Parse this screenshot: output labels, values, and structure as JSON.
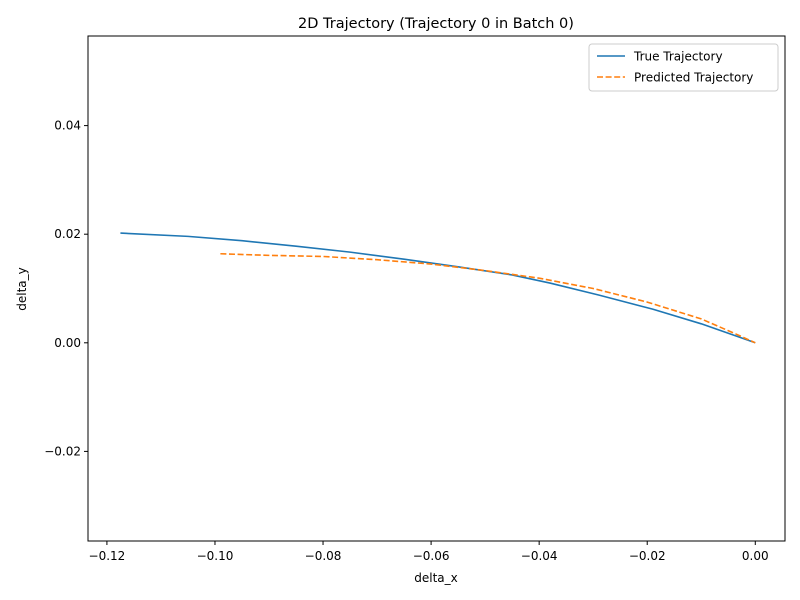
{
  "chart_data": {
    "type": "line",
    "title": "2D Trajectory (Trajectory 0 in Batch 0)",
    "xlabel": "delta_x",
    "ylabel": "delta_y",
    "xlim": [
      -0.1235,
      0.0055
    ],
    "ylim": [
      -0.0365,
      0.0565
    ],
    "xticks": [
      -0.12,
      -0.1,
      -0.08,
      -0.06,
      -0.04,
      -0.02,
      0.0
    ],
    "xtick_labels": [
      "−0.12",
      "−0.10",
      "−0.08",
      "−0.06",
      "−0.04",
      "−0.02",
      "0.00"
    ],
    "yticks": [
      -0.02,
      0.0,
      0.02,
      0.04
    ],
    "ytick_labels": [
      "−0.02",
      "0.00",
      "0.02",
      "0.04"
    ],
    "grid": false,
    "legend_position": "top-right",
    "series": [
      {
        "name": "True Trajectory",
        "color": "#1f77b4",
        "style": "solid",
        "x": [
          -0.1175,
          -0.105,
          -0.095,
          -0.085,
          -0.075,
          -0.065,
          -0.055,
          -0.045,
          -0.038,
          -0.029,
          -0.019,
          -0.01,
          0.0
        ],
        "y": [
          0.0202,
          0.0196,
          0.0188,
          0.0178,
          0.0167,
          0.0154,
          0.014,
          0.0125,
          0.011,
          0.0088,
          0.0062,
          0.0035,
          0.0
        ]
      },
      {
        "name": "Predicted Trajectory",
        "color": "#ff7f0e",
        "style": "dashed",
        "x": [
          -0.099,
          -0.09,
          -0.08,
          -0.07,
          -0.06,
          -0.05,
          -0.04,
          -0.03,
          -0.02,
          -0.01,
          -0.004,
          0.0
        ],
        "y": [
          0.0164,
          0.0161,
          0.0159,
          0.0153,
          0.0145,
          0.0133,
          0.0119,
          0.01,
          0.0075,
          0.0044,
          0.0018,
          0.0
        ]
      }
    ]
  }
}
